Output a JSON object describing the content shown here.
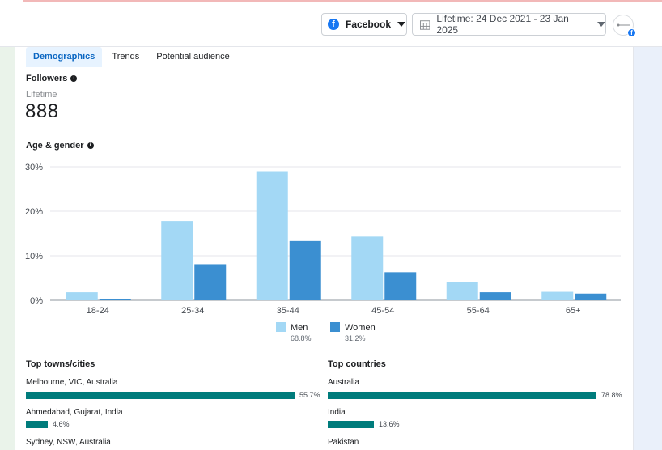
{
  "header": {
    "platform_label": "Facebook",
    "platform_icon": "facebook-icon",
    "date_range_label": "Lifetime: 24 Dec 2021 - 23 Jan 2025",
    "date_icon": "calendar-icon",
    "avatar_badge": "f"
  },
  "tabs": [
    {
      "label": "Demographics",
      "active": true
    },
    {
      "label": "Trends",
      "active": false
    },
    {
      "label": "Potential audience",
      "active": false
    }
  ],
  "followers": {
    "title": "Followers",
    "period": "Lifetime",
    "count": "888"
  },
  "age_gender": {
    "title": "Age & gender"
  },
  "chart_data": {
    "type": "bar",
    "categories": [
      "18-24",
      "25-34",
      "35-44",
      "45-54",
      "55-64",
      "65+"
    ],
    "series": [
      {
        "name": "Men",
        "values": [
          1.8,
          17.8,
          29.0,
          14.3,
          4.1,
          1.9
        ],
        "color": "#a3d8f5",
        "share": "68.8%"
      },
      {
        "name": "Women",
        "values": [
          0.3,
          8.1,
          13.3,
          6.3,
          1.8,
          1.5
        ],
        "color": "#3b8fd1",
        "share": "31.2%"
      }
    ],
    "yticks": [
      "0%",
      "10%",
      "20%",
      "30%"
    ],
    "ylim": [
      0,
      30
    ],
    "grid": true,
    "legend": "bottom-center"
  },
  "top_cities": {
    "title": "Top towns/cities",
    "items": [
      {
        "label": "Melbourne, VIC, Australia",
        "value": 55.7,
        "text": "55.7%"
      },
      {
        "label": "Ahmedabad, Gujarat, India",
        "value": 4.6,
        "text": "4.6%"
      },
      {
        "label": "Sydney, NSW, Australia",
        "value": null,
        "text": ""
      }
    ]
  },
  "top_countries": {
    "title": "Top countries",
    "items": [
      {
        "label": "Australia",
        "value": 78.8,
        "text": "78.8%"
      },
      {
        "label": "India",
        "value": 13.6,
        "text": "13.6%"
      },
      {
        "label": "Pakistan",
        "value": null,
        "text": ""
      }
    ]
  },
  "colors": {
    "accent": "#0a66c2",
    "bar_fill": "#007c7c",
    "men": "#a3d8f5",
    "women": "#3b8fd1"
  }
}
